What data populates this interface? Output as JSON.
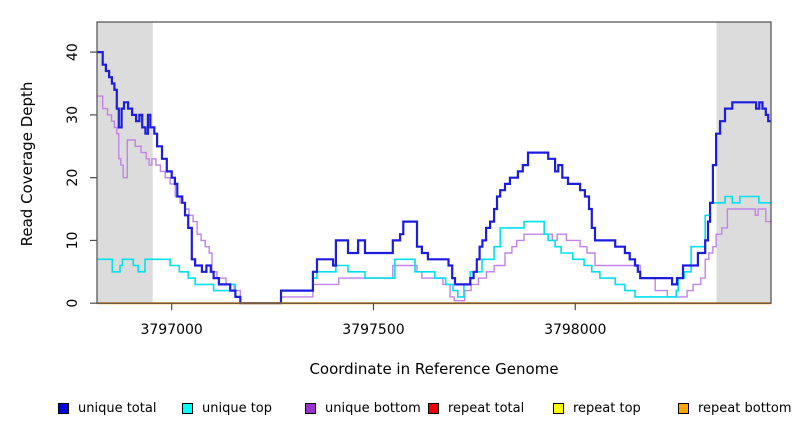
{
  "figure": {
    "background": "#ffffff",
    "band_color": "#dcdcdc",
    "box_color": "#4d4d4d",
    "tick_color": "#4d4d4d",
    "text_color": "#000000"
  },
  "legend": {
    "position": "bottom",
    "items": [
      {
        "label": "unique total",
        "color": "#0000e0"
      },
      {
        "label": "unique top",
        "color": "#00ffff"
      },
      {
        "label": "unique bottom",
        "color": "#9932cc"
      },
      {
        "label": "repeat total",
        "color": "#ee0000"
      },
      {
        "label": "repeat top",
        "color": "#ffff00"
      },
      {
        "label": "repeat bottom",
        "color": "#ffa500"
      }
    ]
  },
  "chart_data": {
    "type": "line",
    "subtype": "step-after",
    "title": "",
    "xlabel": "Coordinate in Reference Genome",
    "ylabel": "Read Coverage Depth",
    "xlim": [
      3796815,
      3798485
    ],
    "ylim": [
      0,
      44.8
    ],
    "x_ticks": [
      3797000,
      3797500,
      3798000
    ],
    "y_ticks": [
      0,
      10,
      20,
      30,
      40
    ],
    "grid": false,
    "legend_position": "bottom",
    "shaded_regions": [
      [
        3796815,
        3796953
      ],
      [
        3798350,
        3798485
      ]
    ],
    "series": [
      {
        "name": "repeat total",
        "color": "#ee0000",
        "width": 1.5,
        "points": [
          [
            3796815,
            0
          ]
        ]
      },
      {
        "name": "repeat top",
        "color": "#ffff00",
        "width": 1.5,
        "points": [
          [
            3796815,
            0
          ]
        ]
      },
      {
        "name": "unique bottom",
        "color": "#c183e8",
        "width": 1.4,
        "points": [
          [
            3796815,
            33
          ],
          [
            3796829,
            31
          ],
          [
            3796841,
            30
          ],
          [
            3796851,
            29
          ],
          [
            3796858,
            28
          ],
          [
            3796864,
            27
          ],
          [
            3796869,
            23
          ],
          [
            3796874,
            22
          ],
          [
            3796880,
            20
          ],
          [
            3796890,
            26
          ],
          [
            3796910,
            25
          ],
          [
            3796924,
            24
          ],
          [
            3796937,
            23
          ],
          [
            3796944,
            22
          ],
          [
            3796951,
            23
          ],
          [
            3796961,
            22
          ],
          [
            3796972,
            21
          ],
          [
            3796984,
            20
          ],
          [
            3796996,
            19
          ],
          [
            3797009,
            17
          ],
          [
            3797021,
            16
          ],
          [
            3797033,
            15
          ],
          [
            3797043,
            14
          ],
          [
            3797053,
            13
          ],
          [
            3797063,
            11
          ],
          [
            3797073,
            10
          ],
          [
            3797083,
            9
          ],
          [
            3797093,
            8
          ],
          [
            3797100,
            5
          ],
          [
            3797112,
            4
          ],
          [
            3797135,
            3
          ],
          [
            3797155,
            2
          ],
          [
            3797170,
            0
          ],
          [
            3797271,
            1
          ],
          [
            3797350,
            3
          ],
          [
            3797414,
            4
          ],
          [
            3797548,
            6
          ],
          [
            3797608,
            5
          ],
          [
            3797620,
            4
          ],
          [
            3797672,
            3
          ],
          [
            3797690,
            1
          ],
          [
            3797700,
            0.4
          ],
          [
            3797726,
            2
          ],
          [
            3797742,
            3
          ],
          [
            3797760,
            4
          ],
          [
            3797780,
            5
          ],
          [
            3797799,
            6
          ],
          [
            3797826,
            8
          ],
          [
            3797843,
            9
          ],
          [
            3797855,
            10
          ],
          [
            3797873,
            11
          ],
          [
            3797943,
            10
          ],
          [
            3797955,
            11
          ],
          [
            3797978,
            10
          ],
          [
            3798012,
            9
          ],
          [
            3798029,
            8
          ],
          [
            3798049,
            6
          ],
          [
            3798161,
            4
          ],
          [
            3798198,
            2
          ],
          [
            3798228,
            1
          ],
          [
            3798277,
            2
          ],
          [
            3798292,
            3
          ],
          [
            3798311,
            4
          ],
          [
            3798322,
            7
          ],
          [
            3798331,
            8
          ],
          [
            3798341,
            9
          ],
          [
            3798349,
            11
          ],
          [
            3798363,
            12
          ],
          [
            3798377,
            15
          ],
          [
            3798446,
            14
          ],
          [
            3798453,
            15
          ],
          [
            3798472,
            13
          ]
        ]
      },
      {
        "name": "unique top",
        "color": "#00e0ee",
        "width": 1.6,
        "points": [
          [
            3796815,
            7
          ],
          [
            3796853,
            5
          ],
          [
            3796872,
            6
          ],
          [
            3796878,
            7
          ],
          [
            3796905,
            6
          ],
          [
            3796917,
            5
          ],
          [
            3796934,
            7
          ],
          [
            3796996,
            6
          ],
          [
            3797019,
            5
          ],
          [
            3797041,
            4
          ],
          [
            3797058,
            3
          ],
          [
            3797104,
            2
          ],
          [
            3797145,
            3
          ],
          [
            3797158,
            1
          ],
          [
            3797170,
            0
          ],
          [
            3797271,
            2
          ],
          [
            3797350,
            4
          ],
          [
            3797360,
            5
          ],
          [
            3797407,
            6
          ],
          [
            3797437,
            5
          ],
          [
            3797479,
            4
          ],
          [
            3797553,
            7
          ],
          [
            3797603,
            5
          ],
          [
            3797652,
            4
          ],
          [
            3797679,
            3
          ],
          [
            3797697,
            2
          ],
          [
            3797709,
            1
          ],
          [
            3797724,
            3
          ],
          [
            3797740,
            5
          ],
          [
            3797769,
            7
          ],
          [
            3797799,
            9
          ],
          [
            3797814,
            12
          ],
          [
            3797873,
            13
          ],
          [
            3797923,
            11
          ],
          [
            3797933,
            10
          ],
          [
            3797950,
            9
          ],
          [
            3797965,
            8
          ],
          [
            3797994,
            7
          ],
          [
            3798022,
            6
          ],
          [
            3798041,
            5
          ],
          [
            3798061,
            4
          ],
          [
            3798099,
            3
          ],
          [
            3798123,
            2
          ],
          [
            3798148,
            1
          ],
          [
            3798250,
            2
          ],
          [
            3798255,
            4
          ],
          [
            3798270,
            5
          ],
          [
            3798287,
            9
          ],
          [
            3798322,
            14
          ],
          [
            3798334,
            16
          ],
          [
            3798371,
            17
          ],
          [
            3798389,
            16
          ],
          [
            3798408,
            17
          ],
          [
            3798455,
            16
          ]
        ]
      },
      {
        "name": "unique total",
        "color": "#1c1cdd",
        "width": 2.2,
        "points": [
          [
            3796815,
            40
          ],
          [
            3796829,
            38
          ],
          [
            3796837,
            37
          ],
          [
            3796845,
            36
          ],
          [
            3796852,
            35
          ],
          [
            3796858,
            34
          ],
          [
            3796864,
            31
          ],
          [
            3796869,
            28
          ],
          [
            3796876,
            31
          ],
          [
            3796882,
            32
          ],
          [
            3796892,
            31
          ],
          [
            3796902,
            30
          ],
          [
            3796912,
            29
          ],
          [
            3796920,
            30
          ],
          [
            3796927,
            28
          ],
          [
            3796935,
            27
          ],
          [
            3796941,
            30
          ],
          [
            3796947,
            28
          ],
          [
            3796957,
            27
          ],
          [
            3796964,
            25
          ],
          [
            3796976,
            23
          ],
          [
            3796988,
            21
          ],
          [
            3797000,
            20
          ],
          [
            3797008,
            19
          ],
          [
            3797014,
            17
          ],
          [
            3797026,
            16
          ],
          [
            3797033,
            14
          ],
          [
            3797041,
            12
          ],
          [
            3797050,
            7
          ],
          [
            3797058,
            6
          ],
          [
            3797075,
            5
          ],
          [
            3797086,
            6
          ],
          [
            3797097,
            5
          ],
          [
            3797104,
            4
          ],
          [
            3797117,
            3
          ],
          [
            3797145,
            2
          ],
          [
            3797158,
            1
          ],
          [
            3797170,
            0
          ],
          [
            3797271,
            2
          ],
          [
            3797350,
            5
          ],
          [
            3797360,
            7
          ],
          [
            3797400,
            6
          ],
          [
            3797407,
            10
          ],
          [
            3797437,
            8
          ],
          [
            3797462,
            10
          ],
          [
            3797479,
            8
          ],
          [
            3797548,
            10
          ],
          [
            3797566,
            11
          ],
          [
            3797574,
            13
          ],
          [
            3797608,
            9
          ],
          [
            3797620,
            8
          ],
          [
            3797635,
            7
          ],
          [
            3797686,
            6
          ],
          [
            3797695,
            4
          ],
          [
            3797702,
            3
          ],
          [
            3797740,
            4
          ],
          [
            3797748,
            5
          ],
          [
            3797756,
            7
          ],
          [
            3797763,
            9
          ],
          [
            3797770,
            10
          ],
          [
            3797779,
            12
          ],
          [
            3797789,
            13
          ],
          [
            3797799,
            15
          ],
          [
            3797806,
            17
          ],
          [
            3797814,
            18
          ],
          [
            3797826,
            19
          ],
          [
            3797838,
            20
          ],
          [
            3797858,
            21
          ],
          [
            3797870,
            22
          ],
          [
            3797883,
            24
          ],
          [
            3797933,
            23
          ],
          [
            3797950,
            21
          ],
          [
            3797958,
            22
          ],
          [
            3797968,
            20
          ],
          [
            3797982,
            19
          ],
          [
            3798012,
            18
          ],
          [
            3798024,
            17
          ],
          [
            3798034,
            15
          ],
          [
            3798041,
            12
          ],
          [
            3798049,
            10
          ],
          [
            3798099,
            9
          ],
          [
            3798123,
            8
          ],
          [
            3798135,
            7
          ],
          [
            3798148,
            6
          ],
          [
            3798155,
            5
          ],
          [
            3798161,
            4
          ],
          [
            3798240,
            3
          ],
          [
            3798252,
            4
          ],
          [
            3798267,
            6
          ],
          [
            3798304,
            8
          ],
          [
            3798322,
            10
          ],
          [
            3798329,
            13
          ],
          [
            3798334,
            16
          ],
          [
            3798341,
            22
          ],
          [
            3798349,
            27
          ],
          [
            3798359,
            29
          ],
          [
            3798371,
            31
          ],
          [
            3798389,
            32
          ],
          [
            3798448,
            31
          ],
          [
            3798456,
            32
          ],
          [
            3798464,
            31
          ],
          [
            3798472,
            30
          ],
          [
            3798478,
            29
          ]
        ]
      },
      {
        "name": "repeat bottom",
        "color": "#ff9400",
        "width": 2,
        "points": [
          [
            3796815,
            0
          ]
        ]
      }
    ]
  }
}
